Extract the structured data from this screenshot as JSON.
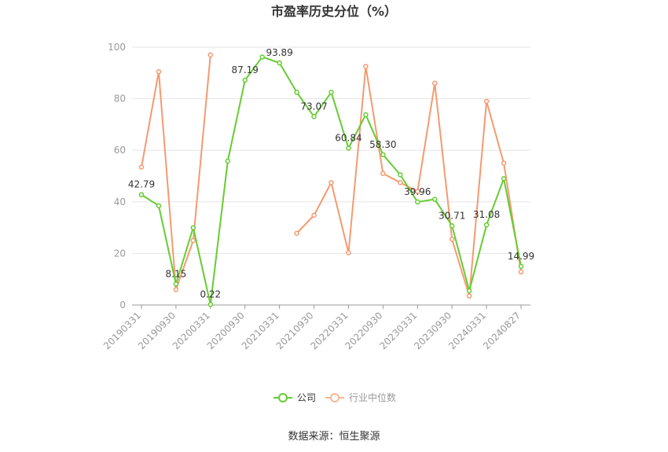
{
  "chart_data": {
    "type": "line",
    "title": "市盈率历史分位（%）",
    "xlabel": "",
    "ylabel": "",
    "ylim": [
      0,
      100
    ],
    "yticks": [
      0,
      20,
      40,
      60,
      80,
      100
    ],
    "grid": true,
    "legend_position": "bottom",
    "x": [
      "20190331",
      "20190630",
      "20190930",
      "20191231",
      "20200331",
      "20200630",
      "20200930",
      "20201231",
      "20210331",
      "20210630",
      "20210930",
      "20211231",
      "20220331",
      "20220630",
      "20220930",
      "20221231",
      "20230331",
      "20230630",
      "20230930",
      "20231231",
      "20240331",
      "20240630",
      "20240827"
    ],
    "x_tick_labels": [
      "20190331",
      "20190930",
      "20200331",
      "20200930",
      "20210331",
      "20210930",
      "20220331",
      "20220930",
      "20230331",
      "20230930",
      "20240331",
      "20240827"
    ],
    "series": [
      {
        "name": "公司",
        "color": "#66cc33",
        "values": [
          42.79,
          38.5,
          8.15,
          30.0,
          0.22,
          55.8,
          87.19,
          96.2,
          93.89,
          82.5,
          73.07,
          82.5,
          60.84,
          73.8,
          58.3,
          50.5,
          39.96,
          41.0,
          30.71,
          5.5,
          31.08,
          49.0,
          14.99
        ],
        "labels": [
          "42.79",
          null,
          "8.15",
          null,
          "0.22",
          null,
          "87.19",
          null,
          "93.89",
          null,
          "73.07",
          null,
          "60.84",
          null,
          "58.30",
          null,
          "39.96",
          null,
          "30.71",
          null,
          "31.08",
          null,
          "14.99"
        ]
      },
      {
        "name": "行业中位数",
        "color": "#f59a70",
        "values": [
          53.5,
          90.5,
          6.0,
          25.0,
          97.0,
          null,
          null,
          null,
          null,
          27.8,
          34.8,
          47.5,
          20.3,
          92.5,
          51.0,
          47.5,
          44.0,
          86.0,
          25.5,
          3.5,
          79.0,
          55.0,
          12.8
        ]
      }
    ]
  },
  "legend": {
    "company": "公司",
    "industry": "行业中位数"
  },
  "source": "数据来源：恒生聚源"
}
